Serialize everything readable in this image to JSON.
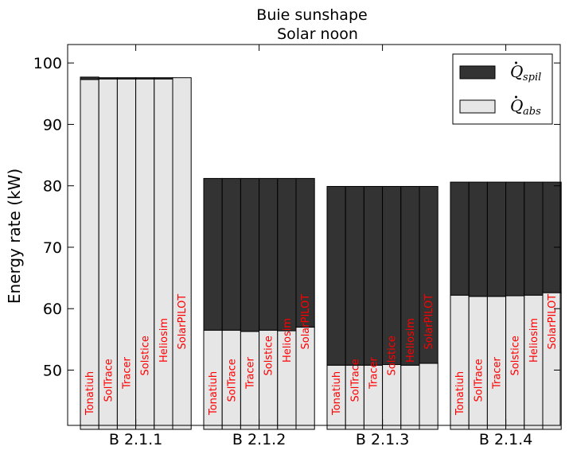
{
  "chart_data": {
    "type": "bar",
    "stacked": true,
    "title": "Buie sunshape",
    "subtitle": "Solar noon",
    "ylabel": "Energy rate (kW)",
    "xlabel": "",
    "ylim": [
      41,
      103
    ],
    "yticks": [
      50,
      60,
      70,
      80,
      90,
      100
    ],
    "categories": [
      "B 2.1.1",
      "B 2.1.2",
      "B 2.1.3",
      "B 2.1.4"
    ],
    "tools": [
      "Tonatiuh",
      "SolTrace",
      "Tracer",
      "Solstice",
      "Heliosim",
      "SolarPILOT"
    ],
    "legend_position": "top-right",
    "colors": {
      "spil": "#333333",
      "abs": "#e6e6e6",
      "tool_label": "#ff0000"
    },
    "legend": [
      {
        "key": "spil",
        "base": "Q",
        "sub": "spil"
      },
      {
        "key": "abs",
        "base": "Q",
        "sub": "abs"
      }
    ],
    "series": [
      {
        "key": "abs",
        "values": [
          [
            97.3,
            97.4,
            97.4,
            97.4,
            97.4,
            97.6
          ],
          [
            56.5,
            56.5,
            56.3,
            56.5,
            56.4,
            57.0
          ],
          [
            50.8,
            50.8,
            50.8,
            50.9,
            50.8,
            51.1
          ],
          [
            62.2,
            62.0,
            62.0,
            62.1,
            62.2,
            62.6
          ]
        ]
      },
      {
        "key": "spil",
        "values": [
          [
            0.4,
            0.2,
            0.2,
            0.2,
            0.2,
            0.0
          ],
          [
            24.7,
            24.7,
            24.9,
            24.7,
            24.8,
            24.2
          ],
          [
            29.1,
            29.1,
            29.1,
            29.0,
            29.1,
            28.8
          ],
          [
            18.4,
            18.6,
            18.6,
            18.5,
            18.4,
            18.0
          ]
        ]
      }
    ]
  }
}
